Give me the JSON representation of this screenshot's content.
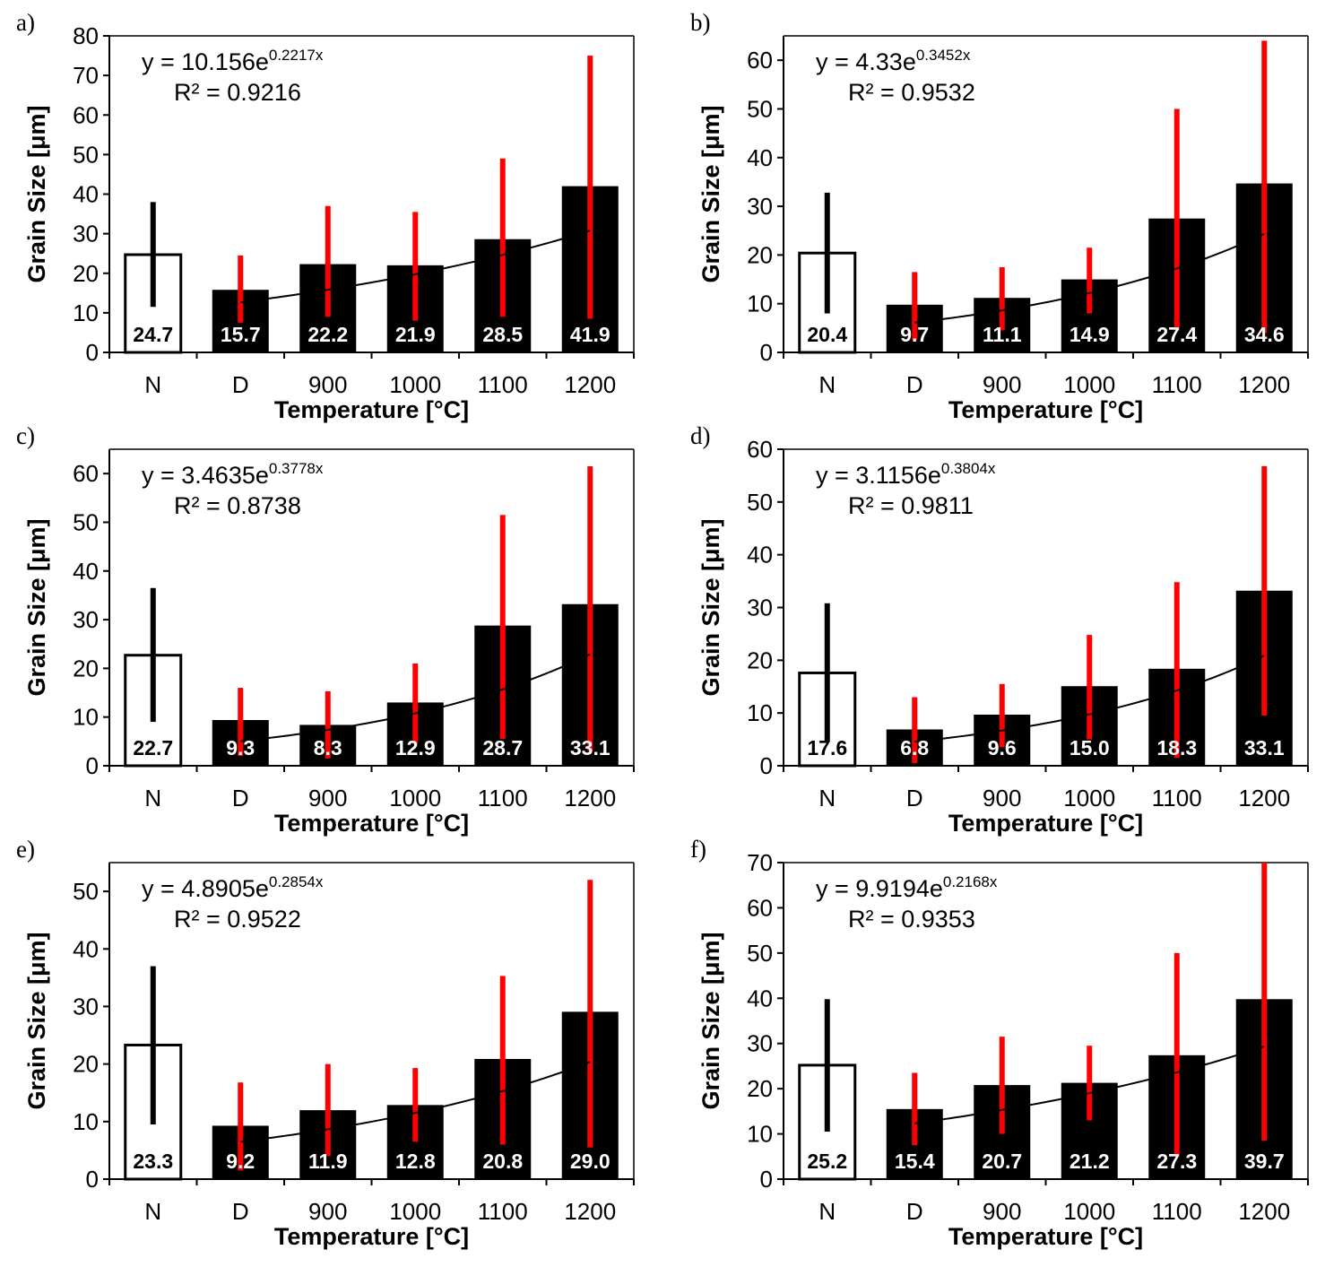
{
  "chart_data": [
    {
      "type": "bar",
      "panel": "a)",
      "categories": [
        "N",
        "D",
        "900",
        "1000",
        "1100",
        "1200"
      ],
      "values": [
        24.7,
        15.7,
        22.2,
        21.9,
        28.5,
        41.9
      ],
      "error_low": [
        11.5,
        7.5,
        9.0,
        8.0,
        9.0,
        8.5
      ],
      "error_high": [
        38.0,
        24.5,
        37.0,
        35.5,
        49.0,
        75.0
      ],
      "yticks": [
        0,
        10,
        20,
        30,
        40,
        50,
        60,
        70,
        80
      ],
      "ylim": [
        0,
        80
      ],
      "xlabel": "Temperature [°C]",
      "ylabel": "Grain Size [μm]",
      "trendline": {
        "a": 10.156,
        "b": 0.2217
      },
      "eq_prefix": "y = 10.156e",
      "eq_exp": "0.2217x",
      "r2_label": "R² = 0.9216",
      "value_labels": [
        "24.7",
        "15.7",
        "22.2",
        "21.9",
        "28.5",
        "41.9"
      ]
    },
    {
      "type": "bar",
      "panel": "b)",
      "categories": [
        "N",
        "D",
        "900",
        "1000",
        "1100",
        "1200"
      ],
      "values": [
        20.4,
        9.7,
        11.1,
        14.9,
        27.4,
        34.6
      ],
      "error_low": [
        8.0,
        2.5,
        4.5,
        8.0,
        4.5,
        4.0
      ],
      "error_high": [
        32.8,
        16.5,
        17.5,
        21.5,
        50.0,
        64.0
      ],
      "yticks": [
        0,
        10,
        20,
        30,
        40,
        50,
        60
      ],
      "ylim": [
        0,
        65
      ],
      "xlabel": "Temperature [°C]",
      "ylabel": "Grain Size [μm]",
      "trendline": {
        "a": 4.33,
        "b": 0.3452
      },
      "eq_prefix": "y = 4.33e",
      "eq_exp": "0.3452x",
      "r2_label": "R² = 0.9532",
      "value_labels": [
        "20.4",
        "9.7",
        "11.1",
        "14.9",
        "27.4",
        "34.6"
      ]
    },
    {
      "type": "bar",
      "panel": "c)",
      "categories": [
        "N",
        "D",
        "900",
        "1000",
        "1100",
        "1200"
      ],
      "values": [
        22.7,
        9.3,
        8.3,
        12.9,
        28.7,
        33.1
      ],
      "error_low": [
        9.0,
        2.0,
        1.5,
        4.5,
        5.5,
        3.0
      ],
      "error_high": [
        36.5,
        16.0,
        15.3,
        21.0,
        51.5,
        61.5
      ],
      "yticks": [
        0,
        10,
        20,
        30,
        40,
        50,
        60
      ],
      "ylim": [
        0,
        65
      ],
      "xlabel": "Temperature [°C]",
      "ylabel": "Grain Size [μm]",
      "trendline": {
        "a": 3.4635,
        "b": 0.3778
      },
      "eq_prefix": "y = 3.4635e",
      "eq_exp": "0.3778x",
      "r2_label": "R² = 0.8738",
      "value_labels": [
        "22.7",
        "9.3",
        "8.3",
        "12.9",
        "28.7",
        "33.1"
      ]
    },
    {
      "type": "bar",
      "panel": "d)",
      "categories": [
        "N",
        "D",
        "900",
        "1000",
        "1100",
        "1200"
      ],
      "values": [
        17.6,
        6.8,
        9.6,
        15.0,
        18.3,
        33.1
      ],
      "error_low": [
        4.5,
        0.5,
        3.5,
        5.0,
        1.5,
        9.5
      ],
      "error_high": [
        30.8,
        13.0,
        15.5,
        24.8,
        34.8,
        56.8
      ],
      "yticks": [
        0,
        10,
        20,
        30,
        40,
        50,
        60
      ],
      "ylim": [
        0,
        60
      ],
      "xlabel": "Temperature [°C]",
      "ylabel": "Grain Size [μm]",
      "trendline": {
        "a": 3.1156,
        "b": 0.3804
      },
      "eq_prefix": "y = 3.1156e",
      "eq_exp": "0.3804x",
      "r2_label": "R² = 0.9811",
      "value_labels": [
        "17.6",
        "6.8",
        "9.6",
        "15.0",
        "18.3",
        "33.1"
      ]
    },
    {
      "type": "bar",
      "panel": "e)",
      "categories": [
        "N",
        "D",
        "900",
        "1000",
        "1100",
        "1200"
      ],
      "values": [
        23.3,
        9.2,
        11.9,
        12.8,
        20.8,
        29.0
      ],
      "error_low": [
        9.5,
        1.5,
        4.0,
        6.5,
        6.0,
        5.5
      ],
      "error_high": [
        37.0,
        16.8,
        20.0,
        19.3,
        35.3,
        52.0
      ],
      "yticks": [
        0,
        10,
        20,
        30,
        40,
        50
      ],
      "ylim": [
        0,
        55
      ],
      "xlabel": "Temperature [°C]",
      "ylabel": "Grain Size [μm]",
      "trendline": {
        "a": 4.8905,
        "b": 0.2854
      },
      "eq_prefix": "y = 4.8905e",
      "eq_exp": "0.2854x",
      "r2_label": "R² = 0.9522",
      "value_labels": [
        "23.3",
        "9.2",
        "11.9",
        "12.8",
        "20.8",
        "29.0"
      ]
    },
    {
      "type": "bar",
      "panel": "f)",
      "categories": [
        "N",
        "D",
        "900",
        "1000",
        "1100",
        "1200"
      ],
      "values": [
        25.2,
        15.4,
        20.7,
        21.2,
        27.3,
        39.7
      ],
      "error_low": [
        10.5,
        7.5,
        10.0,
        13.0,
        5.0,
        8.5
      ],
      "error_high": [
        39.8,
        23.5,
        31.5,
        29.5,
        50.0,
        70.0
      ],
      "yticks": [
        0,
        10,
        20,
        30,
        40,
        50,
        60,
        70
      ],
      "ylim": [
        0,
        70
      ],
      "xlabel": "Temperature [°C]",
      "ylabel": "Grain Size [μm]",
      "trendline": {
        "a": 9.9194,
        "b": 0.2168
      },
      "eq_prefix": "y = 9.9194e",
      "eq_exp": "0.2168x",
      "r2_label": "R² = 0.9353",
      "value_labels": [
        "25.2",
        "15.4",
        "20.7",
        "21.2",
        "27.3",
        "39.7"
      ]
    }
  ],
  "colors": {
    "bar_fill": "#000000",
    "reference_bar_fill": "#ffffff",
    "reference_error": "#000000",
    "error_bar": "#ff0000",
    "trendline": "#000000",
    "axis": "#000000"
  }
}
